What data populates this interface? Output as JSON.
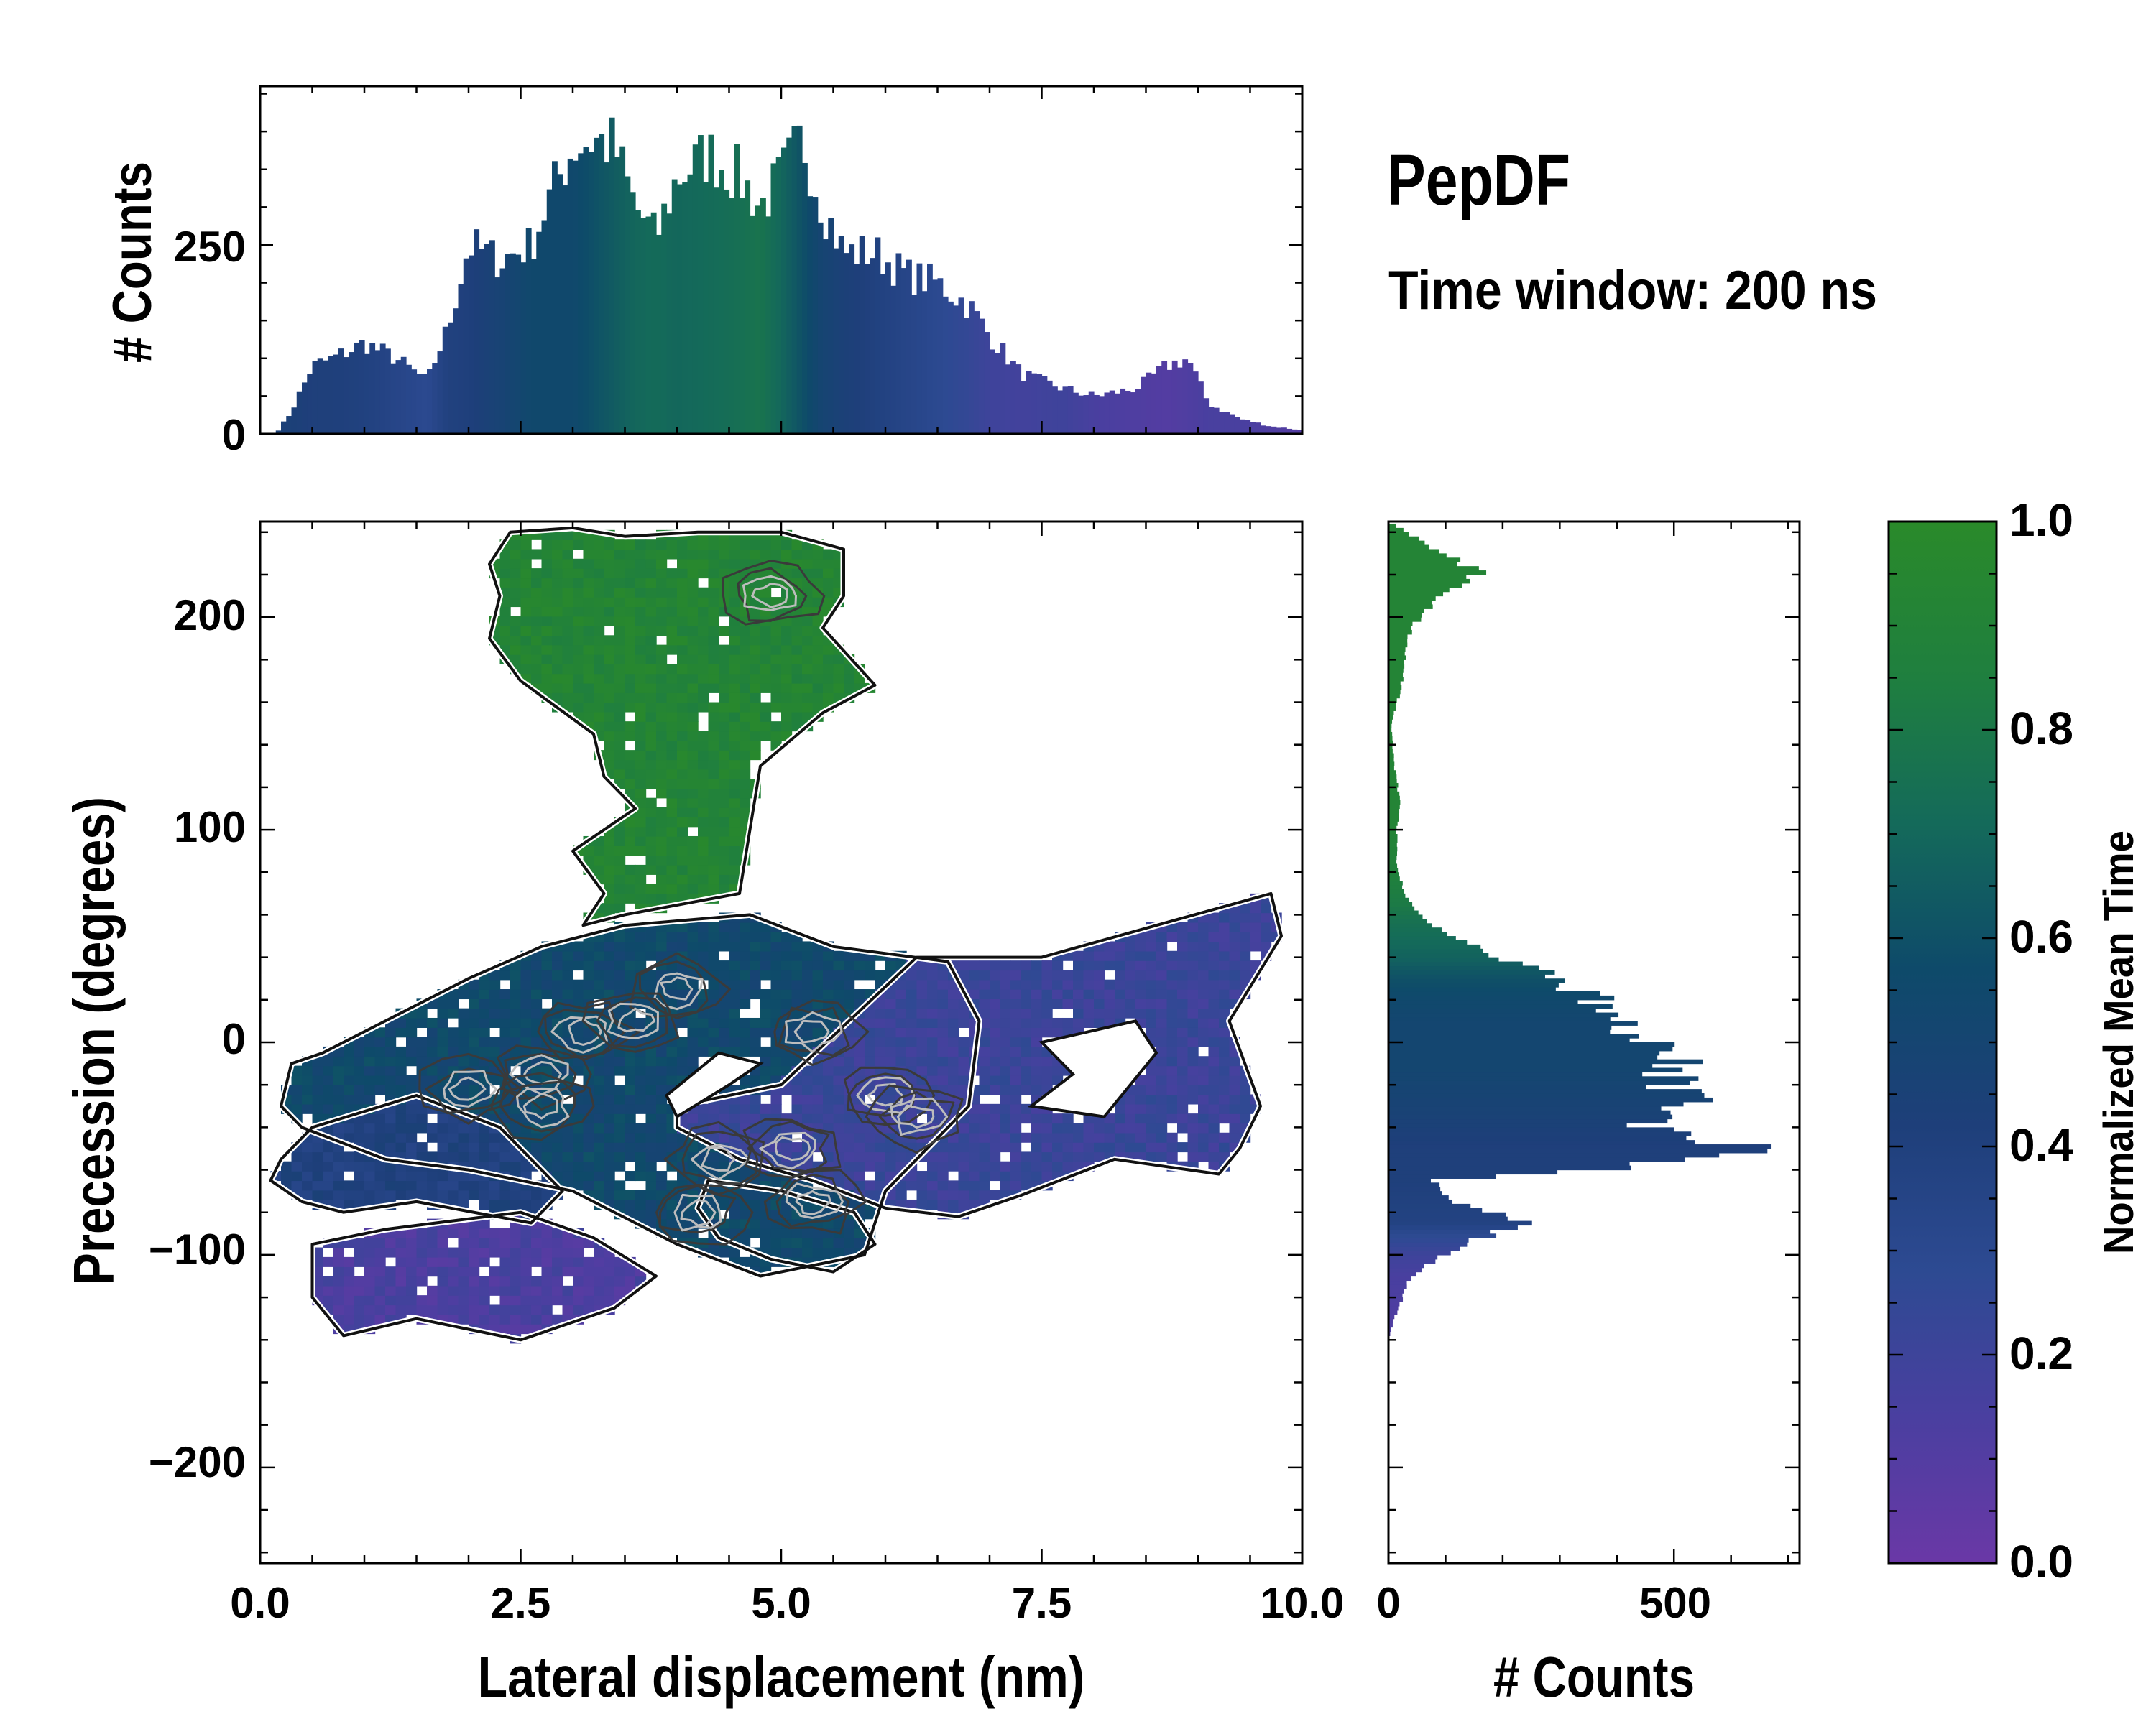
{
  "figure": {
    "title": "PepDF",
    "subtitle": "Time window: 200 ns"
  },
  "colors": {
    "colormap": [
      "#6a38a6",
      "#4a3fa0",
      "#2d4a92",
      "#1e3f7a",
      "#0e4a6a",
      "#146a5a",
      "#1f7f3f",
      "#2a8a2a"
    ],
    "contour_outer": "#111111",
    "contour_inner": "#3a3a3a",
    "contour_peak": "#bdbdbd",
    "axis": "#000000"
  },
  "chart_data": [
    {
      "id": "top-histogram",
      "type": "bar",
      "xlim": [
        0,
        10
      ],
      "ylim": [
        0,
        460
      ],
      "ylabel": "# Counts",
      "yticks": [
        0,
        250
      ],
      "ytick_labels": [
        "0",
        "250"
      ],
      "x_knots": [
        0.15,
        0.3,
        0.5,
        0.7,
        1.0,
        1.3,
        1.6,
        1.8,
        2.0,
        2.3,
        2.6,
        2.8,
        3.0,
        3.2,
        3.4,
        3.6,
        3.8,
        4.0,
        4.3,
        4.6,
        4.8,
        5.0,
        5.2,
        5.4,
        5.6,
        5.9,
        6.2,
        6.5,
        6.8,
        7.0,
        7.3,
        7.7,
        8.0,
        8.4,
        8.7,
        8.9,
        9.1,
        9.4,
        9.7,
        10.0
      ],
      "count_knots": [
        0,
        30,
        90,
        100,
        120,
        100,
        70,
        140,
        250,
        230,
        250,
        320,
        380,
        390,
        380,
        300,
        260,
        340,
        370,
        340,
        300,
        340,
        390,
        300,
        240,
        240,
        210,
        200,
        170,
        130,
        80,
        60,
        50,
        60,
        90,
        100,
        40,
        20,
        10,
        5
      ],
      "time_knots": [
        0.45,
        0.45,
        0.42,
        0.42,
        0.4,
        0.35,
        0.3,
        0.4,
        0.42,
        0.48,
        0.55,
        0.55,
        0.55,
        0.6,
        0.65,
        0.7,
        0.72,
        0.7,
        0.72,
        0.75,
        0.78,
        0.7,
        0.6,
        0.5,
        0.45,
        0.4,
        0.35,
        0.3,
        0.25,
        0.2,
        0.18,
        0.2,
        0.15,
        0.12,
        0.1,
        0.12,
        0.15,
        0.15,
        0.12,
        0.1
      ],
      "n_bins": 200
    },
    {
      "id": "heatmap",
      "type": "heatmap",
      "xlabel": "Lateral displacement (nm)",
      "ylabel": "Precession (degrees)",
      "xlim": [
        0,
        10
      ],
      "ylim": [
        -245,
        245
      ],
      "xticks": [
        0,
        2.5,
        5,
        7.5,
        10
      ],
      "xtick_labels": [
        "0.0",
        "2.5",
        "5.0",
        "7.5",
        "10.0"
      ],
      "yticks": [
        -200,
        -100,
        0,
        100,
        200
      ],
      "ytick_labels": [
        "−200",
        "−100",
        "0",
        "100",
        "200"
      ],
      "cell_size": [
        0.1,
        4.5
      ],
      "regions": [
        {
          "name": "upper lobe",
          "outline": [
            [
              2.4,
              240
            ],
            [
              3.0,
              242
            ],
            [
              3.5,
              238
            ],
            [
              4.2,
              240
            ],
            [
              5.0,
              240
            ],
            [
              5.6,
              232
            ],
            [
              5.6,
              210
            ],
            [
              5.4,
              195
            ],
            [
              5.9,
              168
            ],
            [
              5.4,
              155
            ],
            [
              4.8,
              130
            ],
            [
              4.7,
              100
            ],
            [
              4.6,
              70
            ],
            [
              3.5,
              60
            ],
            [
              3.1,
              55
            ],
            [
              3.3,
              70
            ],
            [
              3.0,
              90
            ],
            [
              3.6,
              110
            ],
            [
              3.3,
              125
            ],
            [
              3.2,
              145
            ],
            [
              2.5,
              170
            ],
            [
              2.2,
              190
            ],
            [
              2.3,
              210
            ],
            [
              2.2,
              225
            ]
          ],
          "time": 0.92
        },
        {
          "name": "center",
          "outline": [
            [
              1.0,
              5
            ],
            [
              2.0,
              30
            ],
            [
              2.7,
              45
            ],
            [
              3.5,
              55
            ],
            [
              4.7,
              60
            ],
            [
              5.5,
              45
            ],
            [
              6.6,
              38
            ],
            [
              6.9,
              10
            ],
            [
              6.8,
              -30
            ],
            [
              6.0,
              -70
            ],
            [
              5.8,
              -100
            ],
            [
              4.8,
              -110
            ],
            [
              4.0,
              -95
            ],
            [
              3.0,
              -70
            ],
            [
              2.0,
              -60
            ],
            [
              1.2,
              -55
            ],
            [
              0.4,
              -40
            ],
            [
              0.2,
              -30
            ],
            [
              0.3,
              -10
            ],
            [
              0.6,
              -5
            ]
          ],
          "time": 0.55
        },
        {
          "name": "left lobe",
          "outline": [
            [
              0.2,
              -55
            ],
            [
              0.5,
              -40
            ],
            [
              1.5,
              -25
            ],
            [
              2.3,
              -40
            ],
            [
              2.9,
              -70
            ],
            [
              2.6,
              -85
            ],
            [
              1.5,
              -75
            ],
            [
              0.8,
              -80
            ],
            [
              0.4,
              -75
            ],
            [
              0.1,
              -65
            ]
          ],
          "time": 0.4
        },
        {
          "name": "lower left",
          "outline": [
            [
              0.5,
              -95
            ],
            [
              1.2,
              -88
            ],
            [
              2.5,
              -80
            ],
            [
              3.2,
              -92
            ],
            [
              3.8,
              -110
            ],
            [
              3.4,
              -125
            ],
            [
              2.5,
              -140
            ],
            [
              1.5,
              -130
            ],
            [
              0.8,
              -138
            ],
            [
              0.5,
              -120
            ]
          ],
          "time": 0.14
        },
        {
          "name": "right lobe",
          "outline": [
            [
              4.0,
              -30
            ],
            [
              5.0,
              -20
            ],
            [
              6.3,
              40
            ],
            [
              7.5,
              40
            ],
            [
              8.6,
              55
            ],
            [
              9.7,
              70
            ],
            [
              9.8,
              50
            ],
            [
              9.3,
              10
            ],
            [
              9.6,
              -30
            ],
            [
              9.4,
              -50
            ],
            [
              9.2,
              -62
            ],
            [
              8.2,
              -55
            ],
            [
              7.3,
              -72
            ],
            [
              6.7,
              -82
            ],
            [
              6.0,
              -78
            ],
            [
              5.3,
              -65
            ],
            [
              4.6,
              -55
            ],
            [
              4.0,
              -40
            ]
          ],
          "time": 0.22
        },
        {
          "name": "bottom right",
          "outline": [
            [
              4.3,
              -65
            ],
            [
              5.0,
              -70
            ],
            [
              5.7,
              -80
            ],
            [
              5.9,
              -95
            ],
            [
              5.5,
              -108
            ],
            [
              4.9,
              -102
            ],
            [
              4.4,
              -92
            ],
            [
              4.2,
              -78
            ]
          ],
          "time": 0.55
        }
      ],
      "holes": [
        [
          [
            7.5,
            0
          ],
          [
            8.4,
            10
          ],
          [
            8.6,
            -5
          ],
          [
            8.1,
            -35
          ],
          [
            7.4,
            -30
          ],
          [
            7.8,
            -15
          ]
        ],
        [
          [
            4.0,
            -35
          ],
          [
            4.5,
            -20
          ],
          [
            4.8,
            -10
          ],
          [
            4.4,
            -5
          ],
          [
            3.9,
            -25
          ]
        ]
      ],
      "contour_peaks": [
        [
          2.0,
          -22
        ],
        [
          2.7,
          -15
        ],
        [
          3.1,
          5
        ],
        [
          2.7,
          -30
        ],
        [
          4.4,
          -55
        ],
        [
          5.1,
          -50
        ],
        [
          5.3,
          -75
        ],
        [
          4.2,
          -80
        ],
        [
          6.0,
          -25
        ],
        [
          6.3,
          -35
        ],
        [
          4.9,
          210
        ],
        [
          4.0,
          25
        ],
        [
          3.6,
          10
        ],
        [
          5.3,
          5
        ]
      ]
    },
    {
      "id": "side-histogram",
      "type": "bar",
      "orientation": "horizontal",
      "xlabel": "# Counts",
      "xlim": [
        0,
        720
      ],
      "ylim": [
        -245,
        245
      ],
      "xticks": [
        0,
        500
      ],
      "xtick_labels": [
        "0",
        "500"
      ],
      "y_knots": [
        -140,
        -130,
        -110,
        -100,
        -90,
        -85,
        -75,
        -65,
        -60,
        -50,
        -40,
        -30,
        -20,
        -10,
        0,
        10,
        20,
        30,
        40,
        55,
        65,
        80,
        100,
        115,
        130,
        150,
        165,
        180,
        195,
        210,
        220,
        230,
        240,
        245
      ],
      "count_knots": [
        0,
        10,
        40,
        100,
        180,
        260,
        120,
        80,
        380,
        650,
        450,
        520,
        500,
        510,
        470,
        400,
        360,
        300,
        180,
        80,
        40,
        15,
        15,
        20,
        10,
        5,
        20,
        30,
        40,
        90,
        160,
        100,
        30,
        0
      ],
      "time_knots": [
        0.12,
        0.12,
        0.15,
        0.2,
        0.3,
        0.38,
        0.4,
        0.42,
        0.42,
        0.42,
        0.45,
        0.48,
        0.5,
        0.52,
        0.52,
        0.52,
        0.55,
        0.6,
        0.68,
        0.75,
        0.82,
        0.88,
        0.92,
        0.92,
        0.92,
        0.92,
        0.92,
        0.92,
        0.92,
        0.92,
        0.92,
        0.92,
        0.92,
        0.92
      ],
      "bin_size": 2
    }
  ],
  "colorbar": {
    "label": "Normalized Mean Time",
    "ticks": [
      0.0,
      0.2,
      0.4,
      0.6,
      0.8,
      1.0
    ],
    "tick_labels": [
      "0.0",
      "0.2",
      "0.4",
      "0.6",
      "0.8",
      "1.0"
    ]
  }
}
